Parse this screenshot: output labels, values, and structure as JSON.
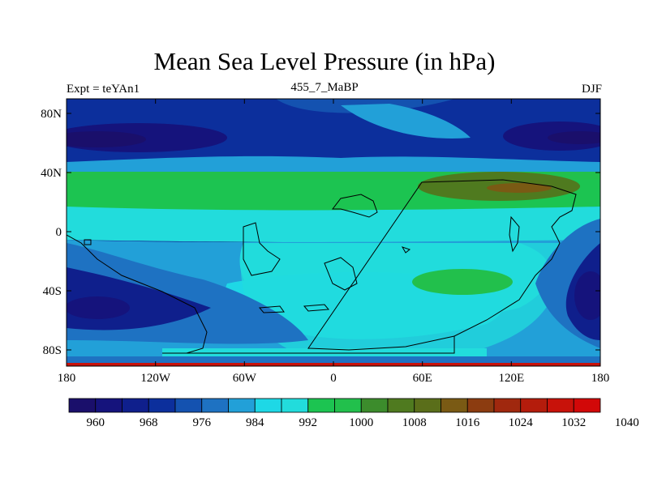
{
  "title": "Mean Sea Level Pressure (in hPa)",
  "left_label": "Expt = teYAn1",
  "center_label": "455_7_MaBP",
  "right_label": "DJF",
  "axes": {
    "lon_ticks": [
      "180",
      "120W",
      "60W",
      "0",
      "60E",
      "120E",
      "180"
    ],
    "lat_ticks": [
      "80N",
      "40N",
      "0",
      "40S",
      "80S"
    ]
  },
  "colorbar": {
    "colors": [
      "#1a0f6b",
      "#15137c",
      "#0f1f8c",
      "#0c2f9c",
      "#1452b0",
      "#1e72c2",
      "#22a0d8",
      "#1ed8e6",
      "#22dcdc",
      "#1cc451",
      "#22c04c",
      "#3c8c2c",
      "#4f7a1f",
      "#5a6e1a",
      "#7a5a14",
      "#8c3c10",
      "#a0280e",
      "#b41c0c",
      "#c8120a",
      "#d20808"
    ],
    "labels": [
      "960",
      "968",
      "976",
      "984",
      "992",
      "1000",
      "1008",
      "1016",
      "1024",
      "1032",
      "1040"
    ]
  }
}
